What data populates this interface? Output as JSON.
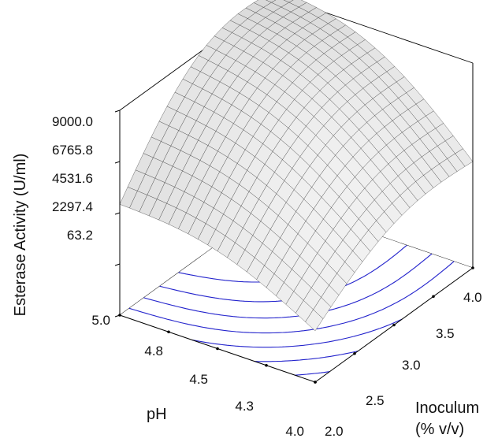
{
  "chart_data": {
    "type": "surface3d",
    "title": "",
    "z_axis": {
      "label": "Esterase Activity (U/ml)",
      "ticks": [
        "9000.0",
        "6765.8",
        "4531.6",
        "2297.4",
        "63.2"
      ],
      "range": [
        63.2,
        9000.0
      ]
    },
    "ph_axis": {
      "label": "pH",
      "ticks": [
        "5.0",
        "4.8",
        "4.5",
        "4.3",
        "4.0"
      ],
      "range": [
        4.0,
        5.0
      ]
    },
    "inoculum_axis": {
      "label_line1": "Inoculum",
      "label_line2": "(% v/v)",
      "ticks": [
        "2.0",
        "2.5",
        "3.0",
        "3.5",
        "4.0"
      ],
      "range": [
        2.0,
        4.0
      ]
    },
    "surface": {
      "grid_resolution": 20,
      "corner_values": {
        "ph4.0_inoc2.0": 2300,
        "ph4.0_inoc4.0": 4700,
        "ph5.0_inoc2.0": 4900,
        "ph5.0_inoc4.0": 9300
      },
      "approx_max": 9300
    },
    "colors": {
      "contour": "#2222cc",
      "mesh_line": "#333333",
      "frame": "#000000",
      "surface_light": "#f4f4f4",
      "surface_dark": "#7a7a7a"
    },
    "contours_present": true
  }
}
